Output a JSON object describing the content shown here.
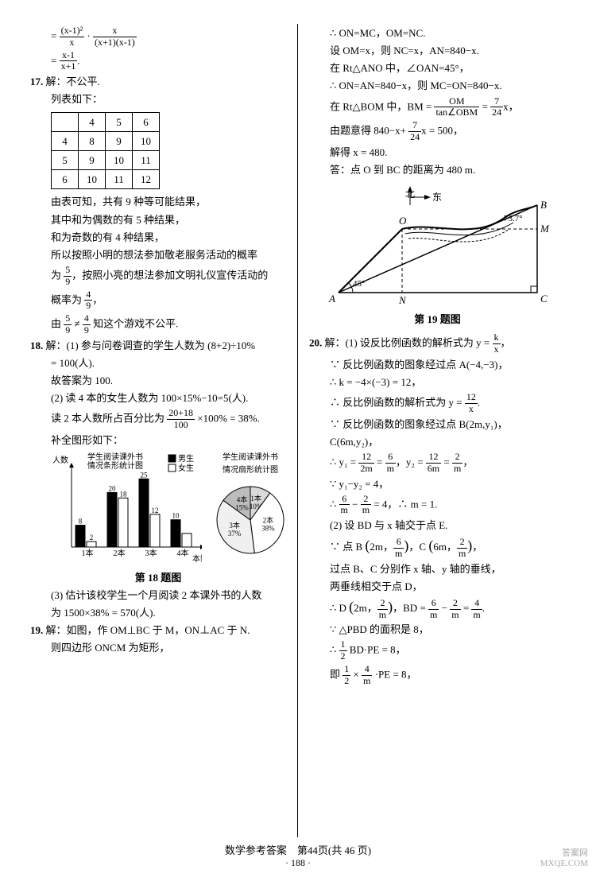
{
  "q16": {
    "line1_a_num": "(x-1)²",
    "line1_a_den": "x",
    "line1_b_num": "x",
    "line1_b_den": "(x+1)(x-1)",
    "line2_num": "x-1",
    "line2_den": "x+1"
  },
  "q17": {
    "num": "17.",
    "label": "解：不公平.",
    "list_label": "列表如下：",
    "table": {
      "cols": [
        "4",
        "5",
        "6"
      ],
      "rows": [
        [
          "4",
          "8",
          "9",
          "10"
        ],
        [
          "5",
          "9",
          "10",
          "11"
        ],
        [
          "6",
          "10",
          "11",
          "12"
        ]
      ]
    },
    "t1": "由表可知，共有 9 种等可能结果，",
    "t2": "其中和为偶数的有 5 种结果，",
    "t3": "和为奇数的有 4 种结果，",
    "t4": "所以按照小明的想法参加敬老服务活动的概率",
    "t5a": "为",
    "f1n": "5",
    "f1d": "9",
    "t5b": "，按照小亮的想法参加文明礼仪宣传活动的",
    "t6a": "概率为",
    "f2n": "4",
    "f2d": "9",
    "t6b": "，",
    "t7a": "由",
    "f3n": "5",
    "f3d": "9",
    "t7b": "≠",
    "f4n": "4",
    "f4d": "9",
    "t7c": " 知这个游戏不公平."
  },
  "q18": {
    "num": "18.",
    "head": "解：(1) 参与问卷调查的学生人数为 (8+2)÷10%",
    "head2": "= 100(人).",
    "ans1": "故答案为 100.",
    "t2": "(2) 读 4 本的女生人数为 100×15%−10=5(人).",
    "t3a": "读 2 本人数所占百分比为",
    "f1n": "20+18",
    "f1d": "100",
    "t3b": "×100% = 38%.",
    "t4": "补全图形如下：",
    "chart": {
      "ylabel": "人数",
      "xlabel": "本数",
      "title1": "学生阅读课外书",
      "title2": "情况条形统计图",
      "legend_m": "男生",
      "legend_f": "女生",
      "legend_m_color": "#000000",
      "legend_f_color": "#ffffff",
      "grid_color": "#000",
      "bg": "#fff",
      "cats": [
        "1本",
        "2本",
        "3本",
        "4本"
      ],
      "values_m": [
        8,
        20,
        25,
        10
      ],
      "values_f": [
        2,
        18,
        12,
        5
      ],
      "labels_m": [
        "8",
        "20",
        "25",
        "10"
      ],
      "labels_f": [
        "2",
        "18",
        "12",
        ""
      ],
      "ymax": 28,
      "ytick": 7,
      "pie_title1": "学生阅读课外书",
      "pie_title2": "情况扇形统计图",
      "pie": [
        {
          "label": "1本",
          "pct": "10%",
          "val": 10,
          "color": "#d9d9d9"
        },
        {
          "label": "2本",
          "pct": "38%",
          "val": 38,
          "color": "#ffffff"
        },
        {
          "label": "3本",
          "pct": "37%",
          "val": 37,
          "color": "#f0f0f0"
        },
        {
          "label": "4本",
          "pct": "15%",
          "val": 15,
          "color": "#bcbcbc"
        }
      ]
    },
    "caption": "第 18 题图",
    "t5": "(3) 估计该校学生一个月阅读 2 本课外书的人数",
    "t5b": "为 1500×38% = 570(人)."
  },
  "q19": {
    "num": "19.",
    "head": "解：如图，作 OM⊥BC 于 M，ON⊥AC 于 N.",
    "t1": "则四边形 ONCM 为矩形，",
    "r1": "∴ ON=MC，OM=NC.",
    "r2": "设 OM=x，则 NC=x，AN=840−x.",
    "r3": "在 Rt△ANO 中，∠OAN=45°，",
    "r4": "∴ ON=AN=840−x，则 MC=ON=840−x.",
    "r5a": "在 Rt△BOM 中，BM =",
    "f1n": "OM",
    "f1d": "tan∠OBM",
    "eq": "=",
    "f2n": "7",
    "f2d": "24",
    "r5b": "x，",
    "r6a": "由题意得 840−x+",
    "f3n": "7",
    "f3d": "24",
    "r6b": "x = 500，",
    "r7": "解得 x = 480.",
    "r8": "答：点 O 到 BC 的距离为 480 m.",
    "fig": {
      "north": "北",
      "east": "东",
      "O": "O",
      "A": "A",
      "B": "B",
      "C": "C",
      "N": "N",
      "M": "M",
      "angA": "45°",
      "angB": "73.7°",
      "line_color": "#000",
      "river_fill": "#fff"
    },
    "caption": "第 19 题图"
  },
  "q20": {
    "num": "20.",
    "head": "解：(1) 设反比例函数的解析式为 y =",
    "f0n": "k",
    "f0d": "x",
    "headb": "，",
    "t1": "∵ 反比例函数的图象经过点 A(−4,−3)，",
    "t2": "∴ k = −4×(−3) = 12，",
    "t3a": "∴ 反比例函数的解析式为 y =",
    "f1n": "12",
    "f1d": "x",
    "t3b": ".",
    "t4": "∵ 反比例函数的图象经过点 B(2m,y₁)，",
    "t4b": "C(6m,y₂)，",
    "t5a": "∴ y₁ =",
    "f2n": "12",
    "f2d": "2m",
    "eq1": "=",
    "f3n": "6",
    "f3d": "m",
    "t5b": "，y₂ =",
    "f4n": "12",
    "f4d": "6m",
    "eq2": "=",
    "f5n": "2",
    "f5d": "m",
    "t5c": "，",
    "t6": "∵ y₁−y₂ = 4，",
    "t7a": "∴",
    "f6n": "6",
    "f6d": "m",
    "t7b": "−",
    "f7n": "2",
    "f7d": "m",
    "t7c": "= 4，∴ m = 1.",
    "t8": "(2) 设 BD 与 x 轴交于点 E.",
    "t9a": "∵ 点 B",
    "lp1": "(",
    "t9b": "2m，",
    "f8n": "6",
    "f8d": "m",
    "rp1": ")",
    "t9c": "，C",
    "lp2": "(",
    "t9d": "6m，",
    "f9n": "2",
    "f9d": "m",
    "rp2": ")",
    "t9e": "，",
    "t10": "过点 B、C 分别作 x 轴、y 轴的垂线，",
    "t11": "两垂线相交于点 D，",
    "t12a": "∴ D",
    "lp3": "(",
    "t12b": "2m，",
    "f10n": "2",
    "f10d": "m",
    "rp3": ")",
    "t12c": "，BD =",
    "f11n": "6",
    "f11d": "m",
    "t12d": "−",
    "f12n": "2",
    "f12d": "m",
    "t12e": "=",
    "f13n": "4",
    "f13d": "m",
    "t12f": ".",
    "t13": "∵ △PBD 的面积是 8，",
    "t14a": "∴",
    "f14n": "1",
    "f14d": "2",
    "t14b": " BD·PE = 8，",
    "t15a": "即",
    "f15n": "1",
    "f15d": "2",
    "t15b": "×",
    "f16n": "4",
    "f16d": "m",
    "t15c": "·PE = 8，"
  },
  "footer": {
    "main": "数学参考答案　第44页(共 46 页)",
    "sub": "· 188 ·"
  },
  "watermark": {
    "l1": "答案网",
    "l2": "MXQE.COM"
  }
}
